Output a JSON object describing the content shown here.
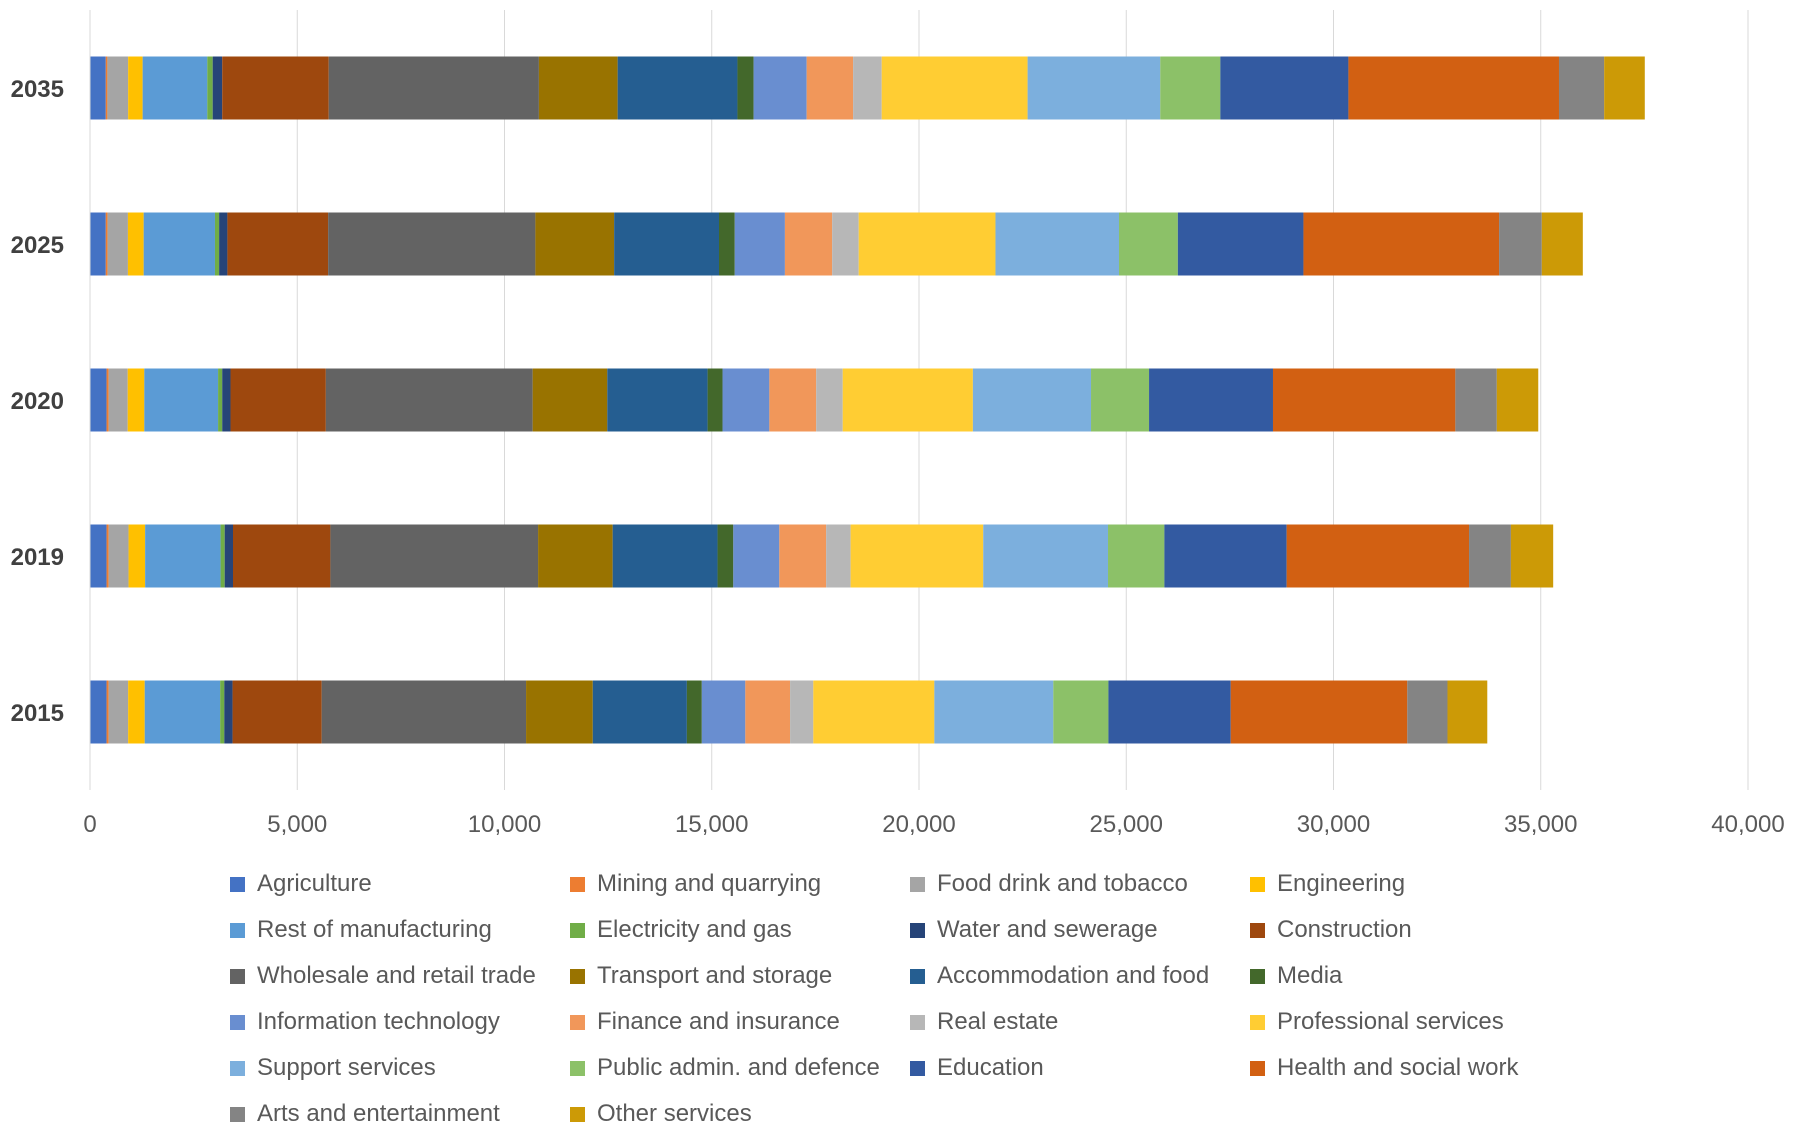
{
  "chart_data": {
    "type": "bar",
    "orientation": "horizontal",
    "stacked": true,
    "categories": [
      "2015",
      "2019",
      "2020",
      "2025",
      "2035"
    ],
    "x_ticks": [
      "0",
      "5,000",
      "10,000",
      "15,000",
      "20,000",
      "25,000",
      "30,000",
      "35,000",
      "40,000"
    ],
    "xlim": [
      0,
      40000
    ],
    "grid": true,
    "legend_position": "bottom",
    "title": "",
    "xlabel": "",
    "ylabel": "",
    "series": [
      {
        "name": "Agriculture",
        "color": "#4472C4",
        "values": [
          400,
          400,
          400,
          380,
          380
        ]
      },
      {
        "name": "Mining and quarrying",
        "color": "#ED7D31",
        "values": [
          50,
          50,
          50,
          45,
          40
        ]
      },
      {
        "name": "Food drink and tobacco",
        "color": "#A5A5A5",
        "values": [
          470,
          480,
          460,
          490,
          500
        ]
      },
      {
        "name": "Engineering",
        "color": "#FFC000",
        "values": [
          400,
          400,
          400,
          380,
          350
        ]
      },
      {
        "name": "Rest of manufacturing",
        "color": "#5B9BD5",
        "values": [
          1820,
          1820,
          1780,
          1720,
          1560
        ]
      },
      {
        "name": "Electricity and gas",
        "color": "#70AD47",
        "values": [
          100,
          100,
          100,
          100,
          130
        ]
      },
      {
        "name": "Water and sewerage",
        "color": "#264478",
        "values": [
          200,
          200,
          200,
          200,
          230
        ]
      },
      {
        "name": "Construction",
        "color": "#9E480E",
        "values": [
          2150,
          2350,
          2300,
          2430,
          2570
        ]
      },
      {
        "name": "Wholesale and retail trade",
        "color": "#636363",
        "values": [
          4930,
          5010,
          4990,
          5000,
          5070
        ]
      },
      {
        "name": "Transport and storage",
        "color": "#997300",
        "values": [
          1610,
          1800,
          1800,
          1900,
          1900
        ]
      },
      {
        "name": "Accommodation and food",
        "color": "#255E91",
        "values": [
          2270,
          2530,
          2420,
          2530,
          2890
        ]
      },
      {
        "name": "Media",
        "color": "#43682B",
        "values": [
          360,
          380,
          360,
          380,
          390
        ]
      },
      {
        "name": "Information technology",
        "color": "#698ED0",
        "values": [
          1050,
          1110,
          1130,
          1210,
          1280
        ]
      },
      {
        "name": "Finance and insurance",
        "color": "#F1975A",
        "values": [
          1080,
          1130,
          1130,
          1140,
          1120
        ]
      },
      {
        "name": "Real estate",
        "color": "#B7B7B7",
        "values": [
          560,
          590,
          640,
          640,
          690
        ]
      },
      {
        "name": "Professional services",
        "color": "#FFCD33",
        "values": [
          2920,
          3200,
          3140,
          3300,
          3520
        ]
      },
      {
        "name": "Support services",
        "color": "#7CAFDD",
        "values": [
          2870,
          3010,
          2850,
          2980,
          3200
        ]
      },
      {
        "name": "Public admin. and defence",
        "color": "#8CC168",
        "values": [
          1330,
          1360,
          1400,
          1420,
          1450
        ]
      },
      {
        "name": "Education",
        "color": "#335AA1",
        "values": [
          2950,
          2950,
          2990,
          3030,
          3090
        ]
      },
      {
        "name": "Health and social work",
        "color": "#D26012",
        "values": [
          4260,
          4400,
          4400,
          4720,
          5080
        ]
      },
      {
        "name": "Arts and entertainment",
        "color": "#848484",
        "values": [
          970,
          1010,
          1000,
          1030,
          1090
        ]
      },
      {
        "name": "Other services",
        "color": "#CC9A06",
        "values": [
          960,
          1020,
          1000,
          990,
          980
        ]
      }
    ]
  }
}
